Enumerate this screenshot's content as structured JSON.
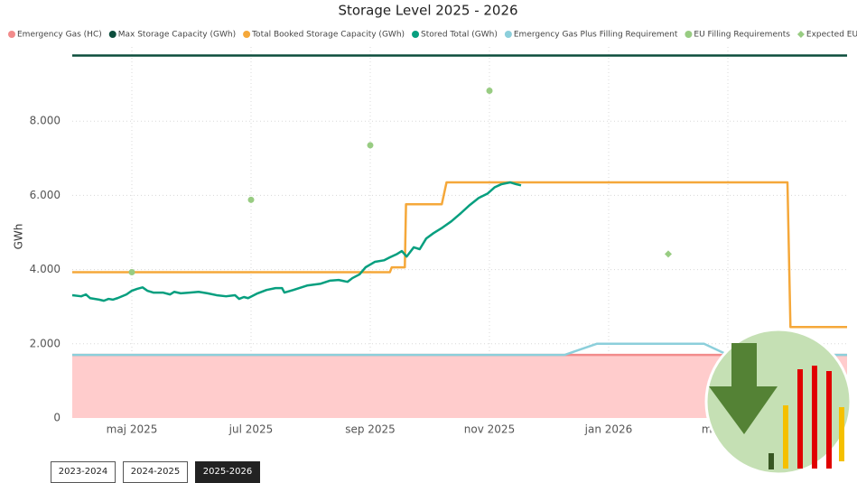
{
  "chart_data": {
    "type": "line",
    "title": "Storage Level 2025 - 2026",
    "y_label": "GWh",
    "xlim": [
      0,
      13
    ],
    "xticks": [
      {
        "value": 1,
        "label": "maj 2025"
      },
      {
        "value": 3,
        "label": "jul 2025"
      },
      {
        "value": 5,
        "label": "sep 2025"
      },
      {
        "value": 7,
        "label": "nov 2025"
      },
      {
        "value": 9,
        "label": "jan 2026"
      },
      {
        "value": 11,
        "label": "mar 2026"
      }
    ],
    "ylim": [
      0,
      10000
    ],
    "yticks": [
      0,
      {
        "value": 2000,
        "label": "2.000"
      },
      {
        "value": 4000,
        "label": "4.000"
      },
      {
        "value": 6000,
        "label": "6.000"
      },
      {
        "value": 8000,
        "label": "8.000"
      }
    ],
    "grid": true,
    "series": [
      {
        "name": "Emergency Gas (HC)",
        "type": "area",
        "color": "#f28b8b",
        "fill": "#ffcccc",
        "x": [
          0,
          13
        ],
        "values": [
          1700,
          1700
        ]
      },
      {
        "name": "Max Storage Capacity (GWh)",
        "type": "line",
        "color": "#0b4d3c",
        "x": [
          0,
          13
        ],
        "values": [
          9770,
          9770
        ]
      },
      {
        "name": "Total Booked Storage Capacity (GWh)",
        "type": "line",
        "color": "#f5a83a",
        "x": [
          0,
          5.33,
          5.36,
          5.58,
          5.6,
          6.2,
          6.28,
          12,
          12.05,
          13
        ],
        "values": [
          3930,
          3930,
          4060,
          4060,
          5760,
          5760,
          6350,
          6350,
          2450,
          2450
        ]
      },
      {
        "name": "Stored Total (GWh)",
        "type": "line",
        "color": "#079f7f",
        "x": [
          0,
          0.15,
          0.23,
          0.3,
          0.45,
          0.53,
          0.61,
          0.68,
          0.76,
          0.91,
          1,
          1.09,
          1.18,
          1.26,
          1.36,
          1.52,
          1.64,
          1.71,
          1.82,
          1.97,
          2.12,
          2.27,
          2.42,
          2.58,
          2.73,
          2.8,
          2.88,
          2.95,
          3.11,
          3.26,
          3.41,
          3.52,
          3.56,
          3.71,
          3.94,
          4.17,
          4.32,
          4.47,
          4.62,
          4.7,
          4.82,
          4.92,
          5.08,
          5.23,
          5.33,
          5.45,
          5.53,
          5.61,
          5.73,
          5.83,
          5.94,
          6.06,
          6.21,
          6.36,
          6.52,
          6.67,
          6.82,
          6.97,
          7.09,
          7.2,
          7.35,
          7.45,
          7.53
        ],
        "values": [
          3310,
          3280,
          3330,
          3230,
          3190,
          3160,
          3210,
          3190,
          3230,
          3330,
          3430,
          3480,
          3520,
          3430,
          3380,
          3380,
          3330,
          3400,
          3360,
          3380,
          3400,
          3360,
          3310,
          3280,
          3310,
          3210,
          3260,
          3230,
          3360,
          3450,
          3500,
          3500,
          3380,
          3450,
          3570,
          3620,
          3700,
          3720,
          3670,
          3770,
          3870,
          4060,
          4210,
          4250,
          4330,
          4420,
          4500,
          4350,
          4600,
          4550,
          4840,
          4980,
          5130,
          5300,
          5520,
          5740,
          5930,
          6050,
          6220,
          6300,
          6350,
          6300,
          6270
        ]
      },
      {
        "name": "Emergency Gas Plus Filling Requirement",
        "type": "line",
        "color": "#8ccfdb",
        "x": [
          0,
          8.26,
          8.8,
          10.6,
          11,
          13
        ],
        "values": [
          1700,
          1700,
          2000,
          2000,
          1700,
          1700
        ]
      },
      {
        "name": "EU Filling Requirements",
        "type": "scatter",
        "marker": "circle",
        "color": "#98cc82",
        "x": [
          1,
          3,
          5,
          7
        ],
        "values": [
          3930,
          5880,
          7350,
          8820
        ]
      },
      {
        "name": "Expected EU Filling Requirements",
        "type": "scatter",
        "marker": "diamond",
        "color": "#98cc82",
        "x": [
          10
        ],
        "values": [
          4420
        ]
      }
    ]
  },
  "buttons": [
    {
      "label": "2023-2024",
      "selected": false
    },
    {
      "label": "2024-2025",
      "selected": false
    },
    {
      "label": "2025-2026",
      "selected": true
    }
  ]
}
